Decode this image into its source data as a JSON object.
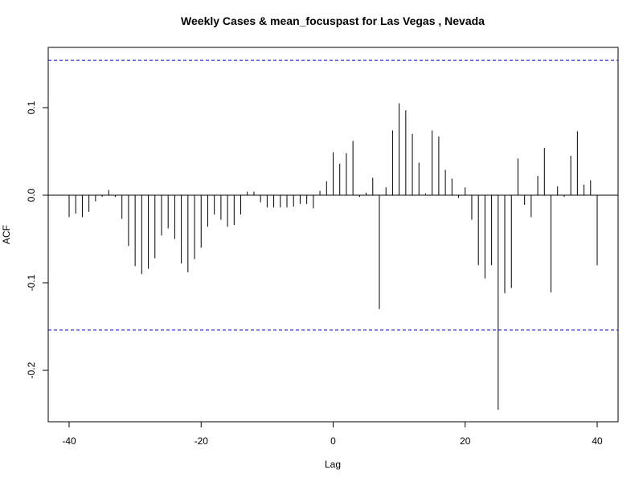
{
  "chart_data": {
    "type": "bar",
    "title": "Weekly Cases & mean_focuspast for Las Vegas , Nevada",
    "xlabel": "Lag",
    "ylabel": "ACF",
    "xlim": [
      -40,
      40
    ],
    "ylim": [
      -0.25,
      0.155
    ],
    "x_ticks": [
      -40,
      -20,
      0,
      20,
      40
    ],
    "y_ticks": [
      -0.2,
      -0.1,
      0.0,
      0.1
    ],
    "x_tick_labels": [
      "-40",
      "-20",
      "0",
      "20",
      "40"
    ],
    "y_tick_labels": [
      "-0.2",
      "-0.1",
      "0.0",
      "0.1"
    ],
    "confidence_bound": 0.154,
    "confidence_color": "#0000CC",
    "bar_color": "#000000",
    "grid": false,
    "series": [
      {
        "x": [
          -40,
          -39,
          -38,
          -37,
          -36,
          -35,
          -34,
          -33,
          -32,
          -31,
          -30,
          -29,
          -28,
          -27,
          -26,
          -25,
          -24,
          -23,
          -22,
          -21,
          -20,
          -19,
          -18,
          -17,
          -16,
          -15,
          -14,
          -13,
          -12,
          -11,
          -10,
          -9,
          -8,
          -7,
          -6,
          -5,
          -4,
          -3,
          -2,
          -1,
          0,
          1,
          2,
          3,
          4,
          5,
          6,
          7,
          8,
          9,
          10,
          11,
          12,
          13,
          14,
          15,
          16,
          17,
          18,
          19,
          20,
          21,
          22,
          23,
          24,
          25,
          26,
          27,
          28,
          29,
          30,
          31,
          32,
          33,
          34,
          35,
          36,
          37,
          38,
          39,
          40
        ],
        "values": [
          -0.025,
          -0.021,
          -0.025,
          -0.019,
          -0.007,
          -0.002,
          0.006,
          -0.002,
          -0.027,
          -0.058,
          -0.081,
          -0.09,
          -0.084,
          -0.072,
          -0.046,
          -0.038,
          -0.05,
          -0.078,
          -0.088,
          -0.073,
          -0.06,
          -0.036,
          -0.022,
          -0.028,
          -0.036,
          -0.034,
          -0.022,
          0.004,
          0.004,
          -0.008,
          -0.014,
          -0.014,
          -0.014,
          -0.014,
          -0.013,
          -0.01,
          -0.01,
          -0.015,
          0.005,
          0.016,
          0.049,
          0.036,
          0.048,
          0.062,
          -0.002,
          0.003,
          0.02,
          -0.13,
          0.009,
          0.074,
          0.105,
          0.097,
          0.07,
          0.037,
          0.002,
          0.074,
          0.067,
          0.029,
          0.019,
          -0.003,
          0.009,
          -0.028,
          -0.08,
          -0.095,
          -0.08,
          -0.245,
          -0.112,
          -0.106,
          0.042,
          -0.011,
          -0.025,
          0.022,
          0.054,
          -0.111,
          0.01,
          -0.002,
          0.045,
          0.073,
          0.012,
          0.017,
          -0.08
        ]
      }
    ]
  }
}
